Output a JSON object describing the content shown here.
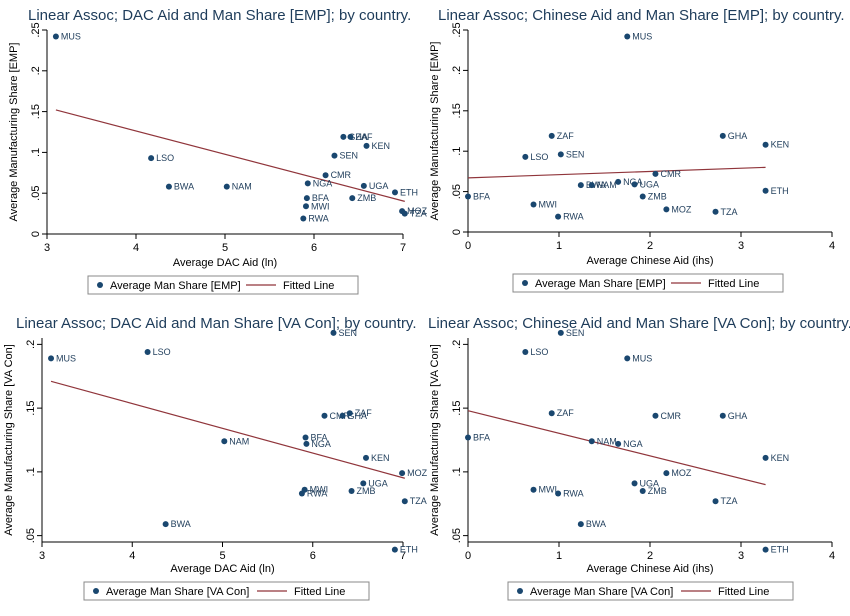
{
  "colors": {
    "marker": "#1a476f",
    "fit": "#90353b",
    "axis": "#000000",
    "title": "#1e3c5a",
    "legend_border": "#888888"
  },
  "chart_data": [
    {
      "type": "scatter",
      "title": "Linear Assoc; DAC Aid and Man Share [EMP]; by country.",
      "xlabel": "Average DAC Aid (ln)",
      "ylabel": "Average Manufacturing Share [EMP]",
      "xlim": [
        3,
        7
      ],
      "ylim": [
        0,
        0.25
      ],
      "xticks": [
        3,
        4,
        5,
        6,
        7
      ],
      "xtick_labels": [
        "3",
        "4",
        "5",
        "6",
        "7"
      ],
      "yticks": [
        0,
        0.05,
        0.1,
        0.15,
        0.2,
        0.25
      ],
      "ytick_labels": [
        "0",
        ".05",
        ".1",
        ".15",
        ".2",
        ".25"
      ],
      "points": [
        {
          "label": "MUS",
          "x": 3.1,
          "y": 0.242
        },
        {
          "label": "LSO",
          "x": 4.17,
          "y": 0.093
        },
        {
          "label": "BWA",
          "x": 4.37,
          "y": 0.058
        },
        {
          "label": "NAM",
          "x": 5.02,
          "y": 0.058
        },
        {
          "label": "SEN",
          "x": 6.23,
          "y": 0.096
        },
        {
          "label": "CMR",
          "x": 6.13,
          "y": 0.072
        },
        {
          "label": "GHA",
          "x": 6.33,
          "y": 0.119
        },
        {
          "label": "ZAF",
          "x": 6.41,
          "y": 0.119
        },
        {
          "label": "KEN",
          "x": 6.59,
          "y": 0.108
        },
        {
          "label": "NGA",
          "x": 5.93,
          "y": 0.062
        },
        {
          "label": "UGA",
          "x": 6.56,
          "y": 0.059
        },
        {
          "label": "ETH",
          "x": 6.91,
          "y": 0.051
        },
        {
          "label": "BFA",
          "x": 5.92,
          "y": 0.044
        },
        {
          "label": "ZMB",
          "x": 6.43,
          "y": 0.044
        },
        {
          "label": "MWI",
          "x": 5.91,
          "y": 0.034
        },
        {
          "label": "RWA",
          "x": 5.88,
          "y": 0.019
        },
        {
          "label": "MOZ",
          "x": 6.99,
          "y": 0.028
        },
        {
          "label": "TZA",
          "x": 7.02,
          "y": 0.025
        }
      ],
      "fit_line": {
        "x": [
          3.1,
          7.02
        ],
        "y": [
          0.152,
          0.04
        ]
      },
      "legend": [
        "Average Man Share [EMP]",
        "Fitted Line"
      ]
    },
    {
      "type": "scatter",
      "title": "Linear Assoc; Chinese Aid and Man Share [EMP]; by country.",
      "xlabel": "Average Chinese Aid (ihs)",
      "ylabel": "Average Manufacturing Share [EMP]",
      "xlim": [
        0,
        4
      ],
      "ylim": [
        0,
        0.25
      ],
      "xticks": [
        0,
        1,
        2,
        3,
        4
      ],
      "xtick_labels": [
        "0",
        "1",
        "2",
        "3",
        "4"
      ],
      "yticks": [
        0,
        0.05,
        0.1,
        0.15,
        0.2,
        0.25
      ],
      "ytick_labels": [
        "0",
        ".05",
        ".1",
        ".15",
        ".2",
        ".25"
      ],
      "points": [
        {
          "label": "MUS",
          "x": 1.75,
          "y": 0.242
        },
        {
          "label": "ZAF",
          "x": 0.92,
          "y": 0.119
        },
        {
          "label": "GHA",
          "x": 2.8,
          "y": 0.119
        },
        {
          "label": "KEN",
          "x": 3.27,
          "y": 0.108
        },
        {
          "label": "LSO",
          "x": 0.63,
          "y": 0.093
        },
        {
          "label": "SEN",
          "x": 1.02,
          "y": 0.096
        },
        {
          "label": "CMR",
          "x": 2.06,
          "y": 0.072
        },
        {
          "label": "NGA",
          "x": 1.65,
          "y": 0.062
        },
        {
          "label": "UGA",
          "x": 1.83,
          "y": 0.059
        },
        {
          "label": "BWA",
          "x": 1.24,
          "y": 0.058
        },
        {
          "label": "NAM",
          "x": 1.36,
          "y": 0.058
        },
        {
          "label": "ETH",
          "x": 3.27,
          "y": 0.051
        },
        {
          "label": "BFA",
          "x": 0.0,
          "y": 0.044
        },
        {
          "label": "ZMB",
          "x": 1.92,
          "y": 0.044
        },
        {
          "label": "MWI",
          "x": 0.72,
          "y": 0.034
        },
        {
          "label": "RWA",
          "x": 0.99,
          "y": 0.019
        },
        {
          "label": "MOZ",
          "x": 2.18,
          "y": 0.028
        },
        {
          "label": "TZA",
          "x": 2.72,
          "y": 0.025
        }
      ],
      "fit_line": {
        "x": [
          0,
          3.27
        ],
        "y": [
          0.067,
          0.08
        ]
      },
      "legend": [
        "Average Man Share [EMP]",
        "Fitted Line"
      ]
    },
    {
      "type": "scatter",
      "title": "Linear Assoc; DAC Aid and Man Share [VA Con]; by country.",
      "xlabel": "Average DAC Aid (ln)",
      "ylabel": "Average Manufacturing Share [VA Con]",
      "xlim": [
        3,
        7
      ],
      "ylim": [
        0.045,
        0.205
      ],
      "xticks": [
        3,
        4,
        5,
        6,
        7
      ],
      "xtick_labels": [
        "3",
        "4",
        "5",
        "6",
        "7"
      ],
      "yticks": [
        0.05,
        0.1,
        0.15,
        0.2
      ],
      "ytick_labels": [
        ".05",
        ".1",
        ".15",
        ".2"
      ],
      "points": [
        {
          "label": "SEN",
          "x": 6.23,
          "y": 0.209
        },
        {
          "label": "LSO",
          "x": 4.17,
          "y": 0.194
        },
        {
          "label": "MUS",
          "x": 3.1,
          "y": 0.189
        },
        {
          "label": "CMR",
          "x": 6.13,
          "y": 0.144
        },
        {
          "label": "GHA",
          "x": 6.33,
          "y": 0.144
        },
        {
          "label": "ZAF",
          "x": 6.41,
          "y": 0.146
        },
        {
          "label": "BFA",
          "x": 5.92,
          "y": 0.127
        },
        {
          "label": "NAM",
          "x": 5.02,
          "y": 0.124
        },
        {
          "label": "NGA",
          "x": 5.93,
          "y": 0.122
        },
        {
          "label": "KEN",
          "x": 6.59,
          "y": 0.111
        },
        {
          "label": "MOZ",
          "x": 6.99,
          "y": 0.099
        },
        {
          "label": "UGA",
          "x": 6.56,
          "y": 0.091
        },
        {
          "label": "MWI",
          "x": 5.91,
          "y": 0.086
        },
        {
          "label": "RWA",
          "x": 5.88,
          "y": 0.083
        },
        {
          "label": "ZMB",
          "x": 6.43,
          "y": 0.085
        },
        {
          "label": "TZA",
          "x": 7.02,
          "y": 0.077
        },
        {
          "label": "BWA",
          "x": 4.37,
          "y": 0.059
        },
        {
          "label": "ETH",
          "x": 6.91,
          "y": 0.039
        }
      ],
      "fit_line": {
        "x": [
          3.1,
          7.02
        ],
        "y": [
          0.171,
          0.095
        ]
      },
      "legend": [
        "Average Man Share [VA Con]",
        "Fitted Line"
      ]
    },
    {
      "type": "scatter",
      "title": "Linear Assoc; Chinese Aid and Man Share [VA Con]; by country.",
      "xlabel": "Average Chinese Aid (ihs)",
      "ylabel": "Average Manufacturing Share [VA Con]",
      "xlim": [
        0,
        4
      ],
      "ylim": [
        0.045,
        0.205
      ],
      "xticks": [
        0,
        1,
        2,
        3,
        4
      ],
      "xtick_labels": [
        "0",
        "1",
        "2",
        "3",
        "4"
      ],
      "yticks": [
        0.05,
        0.1,
        0.15,
        0.2
      ],
      "ytick_labels": [
        ".05",
        ".1",
        ".15",
        ".2"
      ],
      "points": [
        {
          "label": "SEN",
          "x": 1.02,
          "y": 0.209
        },
        {
          "label": "LSO",
          "x": 0.63,
          "y": 0.194
        },
        {
          "label": "MUS",
          "x": 1.75,
          "y": 0.189
        },
        {
          "label": "ZAF",
          "x": 0.92,
          "y": 0.146
        },
        {
          "label": "CMR",
          "x": 2.06,
          "y": 0.144
        },
        {
          "label": "GHA",
          "x": 2.8,
          "y": 0.144
        },
        {
          "label": "BFA",
          "x": 0.0,
          "y": 0.127
        },
        {
          "label": "NAM",
          "x": 1.36,
          "y": 0.124
        },
        {
          "label": "NGA",
          "x": 1.65,
          "y": 0.122
        },
        {
          "label": "KEN",
          "x": 3.27,
          "y": 0.111
        },
        {
          "label": "MOZ",
          "x": 2.18,
          "y": 0.099
        },
        {
          "label": "UGA",
          "x": 1.83,
          "y": 0.091
        },
        {
          "label": "MWI",
          "x": 0.72,
          "y": 0.086
        },
        {
          "label": "RWA",
          "x": 0.99,
          "y": 0.083
        },
        {
          "label": "ZMB",
          "x": 1.92,
          "y": 0.085
        },
        {
          "label": "TZA",
          "x": 2.72,
          "y": 0.077
        },
        {
          "label": "BWA",
          "x": 1.24,
          "y": 0.059
        },
        {
          "label": "ETH",
          "x": 3.27,
          "y": 0.039
        }
      ],
      "fit_line": {
        "x": [
          0,
          3.27
        ],
        "y": [
          0.148,
          0.09
        ]
      },
      "legend": [
        "Average Man Share [VA Con]",
        "Fitted Line"
      ]
    }
  ]
}
